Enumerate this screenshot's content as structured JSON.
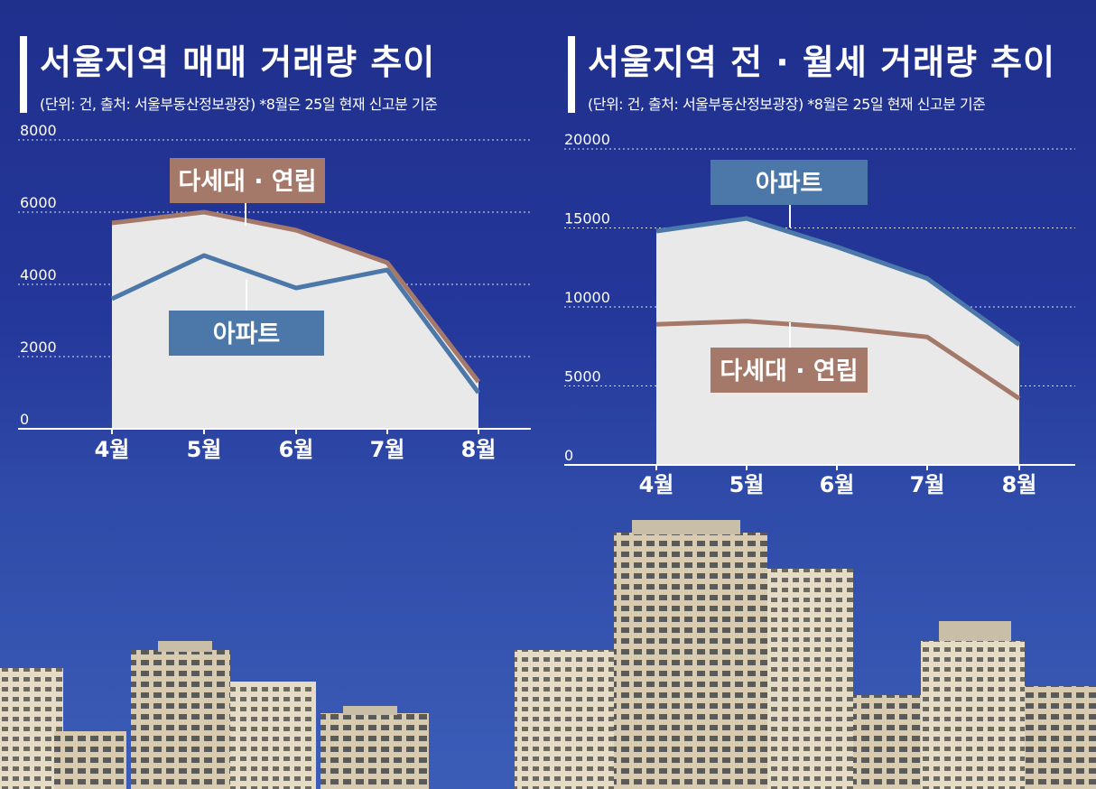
{
  "chart_data": [
    {
      "type": "area",
      "title": "서울지역 매매 거래량 추이",
      "subtitle": "(단위: 건, 출처: 서울부동산정보광장) *8월은 25일 현재 신고분 기준",
      "categories": [
        "4월",
        "5월",
        "6월",
        "7월",
        "8월"
      ],
      "series": [
        {
          "name": "다세대 · 연립",
          "values": [
            5700,
            6000,
            5500,
            4600,
            1300
          ],
          "color": "#a5796a"
        },
        {
          "name": "아파트",
          "values": [
            3600,
            4800,
            3900,
            4400,
            1000
          ],
          "color": "#4b78a8"
        }
      ],
      "yticks": [
        "8000",
        "6000",
        "4000",
        "2000",
        "0"
      ],
      "ylim": [
        0,
        8000
      ],
      "grid": true,
      "area_fill": "#e9e9e9"
    },
    {
      "type": "area",
      "title": "서울지역 전 · 월세 거래량 추이",
      "subtitle": "(단위: 건, 출처: 서울부동산정보광장) *8월은 25일 현재 신고분 기준",
      "categories": [
        "4월",
        "5월",
        "6월",
        "7월",
        "8월"
      ],
      "series": [
        {
          "name": "아파트",
          "values": [
            14800,
            15600,
            13800,
            11800,
            7600
          ],
          "color": "#4b78a8"
        },
        {
          "name": "다세대 · 연립",
          "values": [
            8900,
            9100,
            8700,
            8100,
            4200
          ],
          "color": "#a5796a"
        }
      ],
      "yticks": [
        "20000",
        "15000",
        "10000",
        "5000",
        "0"
      ],
      "ylim": [
        0,
        20000
      ],
      "grid": true,
      "area_fill": "#e9e9e9"
    }
  ],
  "colors": {
    "background": "#24379a",
    "text": "#ffffff"
  }
}
